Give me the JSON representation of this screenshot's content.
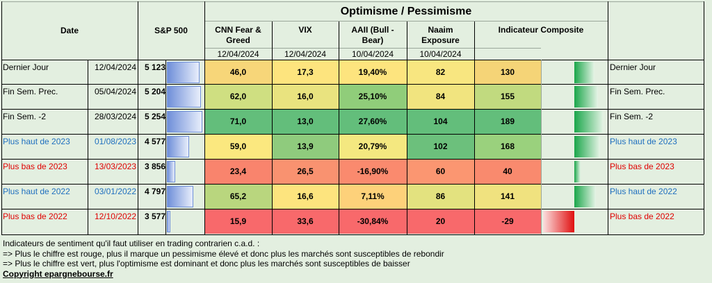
{
  "header": {
    "date": "Date",
    "sp500": "S&P 500",
    "group_title": "Optimisme / Pessimisme",
    "columns": [
      {
        "label": [
          "CNN Fear &",
          "Greed"
        ],
        "date": "12/04/2024"
      },
      {
        "label": [
          "VIX",
          ""
        ],
        "date": "12/04/2024"
      },
      {
        "label": [
          "AAII (Bull -",
          "Bear)"
        ],
        "date": "10/04/2024"
      },
      {
        "label": [
          "Naaim",
          "Exposure"
        ],
        "date": "10/04/2024"
      },
      {
        "label": [
          "Indicateur Composite",
          ""
        ],
        "date": ""
      }
    ]
  },
  "rows": [
    {
      "label": "Dernier Jour",
      "date": "12/04/2024",
      "sp": "5 123",
      "sp_value": 5123,
      "values": [
        "46,0",
        "17,3",
        "19,40%",
        "82",
        "130"
      ],
      "colors": [
        "#f7d679",
        "#fde47e",
        "#fde47e",
        "#f8e680",
        "#f5d477"
      ],
      "composite": 130,
      "style": "black"
    },
    {
      "label": "Fin Sem. Prec.",
      "date": "05/04/2024",
      "sp": "5 204",
      "sp_value": 5204,
      "values": [
        "62,0",
        "16,0",
        "25,10%",
        "84",
        "155"
      ],
      "colors": [
        "#cfdf81",
        "#e9e37f",
        "#90cd7a",
        "#f1e47f",
        "#c1da7f"
      ],
      "composite": 155,
      "style": "black"
    },
    {
      "label": "Fin Sem. -2",
      "date": "28/03/2024",
      "sp": "5 254",
      "sp_value": 5254,
      "values": [
        "71,0",
        "13,0",
        "27,60%",
        "104",
        "189"
      ],
      "colors": [
        "#63be7b",
        "#63be7b",
        "#63be7b",
        "#63be7b",
        "#63be7b"
      ],
      "composite": 189,
      "style": "black"
    },
    {
      "label": "Plus haut de 2023",
      "date": "01/08/2023",
      "sp": "4 577",
      "sp_value": 4577,
      "values": [
        "59,0",
        "13,9",
        "20,79%",
        "102",
        "168"
      ],
      "colors": [
        "#fbe87f",
        "#8fcb7d",
        "#f4e880",
        "#6cc07c",
        "#9ad17d"
      ],
      "composite": 168,
      "style": "blue"
    },
    {
      "label": "Plus bas de 2023",
      "date": "13/03/2023",
      "sp": "3 856",
      "sp_value": 3856,
      "values": [
        "23,4",
        "26,5",
        "-16,90%",
        "60",
        "40"
      ],
      "colors": [
        "#f9846d",
        "#f99270",
        "#fa8a6e",
        "#fb9671",
        "#f98a6e"
      ],
      "composite": 40,
      "style": "red"
    },
    {
      "label": "Plus haut de 2022",
      "date": "03/01/2022",
      "sp": "4 797",
      "sp_value": 4797,
      "values": [
        "65,2",
        "16,6",
        "7,11%",
        "86",
        "141"
      ],
      "colors": [
        "#b9d67e",
        "#fde47e",
        "#fdd17a",
        "#e3e27f",
        "#f0e27f"
      ],
      "composite": 141,
      "style": "blue"
    },
    {
      "label": "Plus bas de 2022",
      "date": "12/10/2022",
      "sp": "3 577",
      "sp_value": 3577,
      "values": [
        "15,9",
        "33,6",
        "-30,84%",
        "20",
        "-29"
      ],
      "colors": [
        "#f8696b",
        "#f8696b",
        "#f8696b",
        "#f8696b",
        "#f8696b"
      ],
      "composite": -29,
      "style": "red"
    }
  ],
  "styles": {
    "black": "#000000",
    "blue": "#1f6fbf",
    "red": "#e00000"
  },
  "bar_color": "#6f8fd9",
  "notes": [
    "Indicateurs de sentiment qu'il faut utiliser en trading contrarien c.a.d. :",
    "=> Plus le chiffre est rouge, plus il marque un pessimisme élevé et donc plus les marchés sont susceptibles de rebondir",
    "=> Plus le chiffre est vert, plus l'optimisme est dominant et donc plus les marchés sont susceptibles de baisser"
  ],
  "copyright": "Copyright epargnebourse.fr"
}
